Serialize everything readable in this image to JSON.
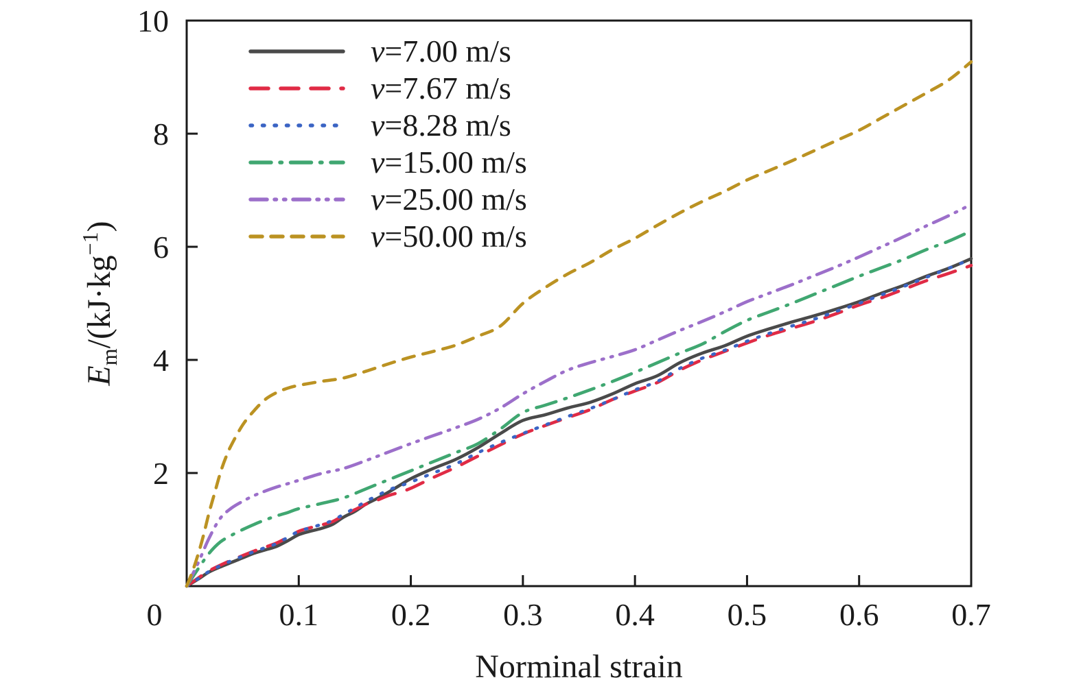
{
  "chart_data": {
    "type": "line",
    "title": "",
    "xlabel": "Norminal strain",
    "ylabel_parts": {
      "var": "E",
      "sub": "m",
      "mid": "/(kJ·kg",
      "sup": "−1",
      "end": ")"
    },
    "xlim": [
      0,
      0.7
    ],
    "ylim": [
      0,
      10
    ],
    "x_ticks": [
      0,
      0.1,
      0.2,
      0.3,
      0.4,
      0.5,
      0.6,
      0.7
    ],
    "x_tick_labels": [
      "0",
      "0.1",
      "0.2",
      "0.3",
      "0.4",
      "0.5",
      "0.6",
      "0.7"
    ],
    "y_ticks": [
      2,
      4,
      6,
      8,
      10
    ],
    "y_tick_labels": [
      "2",
      "4",
      "6",
      "8",
      "10"
    ],
    "grid": false,
    "legend_position": "upper left",
    "frame_color": "#1a1a1a",
    "series": [
      {
        "name": "v=7.00 m/s",
        "label_var": "v",
        "label_rest": "=7.00 m/s",
        "color": "#4a4a4a",
        "style": "solid",
        "points": [
          [
            0,
            0
          ],
          [
            0.01,
            0.12
          ],
          [
            0.02,
            0.25
          ],
          [
            0.03,
            0.34
          ],
          [
            0.04,
            0.42
          ],
          [
            0.05,
            0.5
          ],
          [
            0.06,
            0.58
          ],
          [
            0.07,
            0.64
          ],
          [
            0.08,
            0.7
          ],
          [
            0.09,
            0.8
          ],
          [
            0.1,
            0.91
          ],
          [
            0.11,
            0.97
          ],
          [
            0.12,
            1.02
          ],
          [
            0.13,
            1.09
          ],
          [
            0.14,
            1.22
          ],
          [
            0.15,
            1.32
          ],
          [
            0.16,
            1.45
          ],
          [
            0.17,
            1.55
          ],
          [
            0.18,
            1.66
          ],
          [
            0.19,
            1.78
          ],
          [
            0.2,
            1.9
          ],
          [
            0.22,
            2.08
          ],
          [
            0.24,
            2.24
          ],
          [
            0.26,
            2.45
          ],
          [
            0.28,
            2.7
          ],
          [
            0.3,
            2.93
          ],
          [
            0.32,
            3.03
          ],
          [
            0.34,
            3.15
          ],
          [
            0.36,
            3.25
          ],
          [
            0.38,
            3.4
          ],
          [
            0.4,
            3.58
          ],
          [
            0.42,
            3.72
          ],
          [
            0.44,
            3.95
          ],
          [
            0.46,
            4.12
          ],
          [
            0.48,
            4.25
          ],
          [
            0.5,
            4.42
          ],
          [
            0.52,
            4.55
          ],
          [
            0.54,
            4.67
          ],
          [
            0.56,
            4.78
          ],
          [
            0.58,
            4.9
          ],
          [
            0.6,
            5.03
          ],
          [
            0.62,
            5.18
          ],
          [
            0.64,
            5.32
          ],
          [
            0.66,
            5.48
          ],
          [
            0.68,
            5.62
          ],
          [
            0.7,
            5.79
          ]
        ]
      },
      {
        "name": "v=7.67 m/s",
        "label_var": "v",
        "label_rest": "=7.67 m/s",
        "color": "#e02b45",
        "style": "dashed",
        "points": [
          [
            0,
            0
          ],
          [
            0.01,
            0.14
          ],
          [
            0.02,
            0.27
          ],
          [
            0.03,
            0.37
          ],
          [
            0.04,
            0.46
          ],
          [
            0.05,
            0.54
          ],
          [
            0.06,
            0.62
          ],
          [
            0.07,
            0.69
          ],
          [
            0.08,
            0.76
          ],
          [
            0.09,
            0.86
          ],
          [
            0.1,
            0.97
          ],
          [
            0.11,
            1.03
          ],
          [
            0.12,
            1.08
          ],
          [
            0.13,
            1.14
          ],
          [
            0.14,
            1.25
          ],
          [
            0.15,
            1.35
          ],
          [
            0.16,
            1.45
          ],
          [
            0.17,
            1.52
          ],
          [
            0.18,
            1.6
          ],
          [
            0.19,
            1.66
          ],
          [
            0.2,
            1.73
          ],
          [
            0.22,
            1.92
          ],
          [
            0.24,
            2.1
          ],
          [
            0.26,
            2.3
          ],
          [
            0.28,
            2.5
          ],
          [
            0.3,
            2.69
          ],
          [
            0.32,
            2.84
          ],
          [
            0.34,
            2.98
          ],
          [
            0.36,
            3.12
          ],
          [
            0.38,
            3.3
          ],
          [
            0.4,
            3.45
          ],
          [
            0.42,
            3.6
          ],
          [
            0.44,
            3.82
          ],
          [
            0.46,
            4.0
          ],
          [
            0.48,
            4.15
          ],
          [
            0.5,
            4.3
          ],
          [
            0.52,
            4.44
          ],
          [
            0.54,
            4.56
          ],
          [
            0.56,
            4.68
          ],
          [
            0.58,
            4.82
          ],
          [
            0.6,
            4.97
          ],
          [
            0.62,
            5.1
          ],
          [
            0.64,
            5.25
          ],
          [
            0.66,
            5.4
          ],
          [
            0.68,
            5.53
          ],
          [
            0.7,
            5.67
          ]
        ]
      },
      {
        "name": "v=8.28 m/s",
        "label_var": "v",
        "label_rest": "=8.28 m/s",
        "color": "#3b64c4",
        "style": "dotted",
        "points": [
          [
            0,
            0
          ],
          [
            0.01,
            0.13
          ],
          [
            0.02,
            0.26
          ],
          [
            0.03,
            0.36
          ],
          [
            0.04,
            0.45
          ],
          [
            0.05,
            0.53
          ],
          [
            0.06,
            0.61
          ],
          [
            0.07,
            0.68
          ],
          [
            0.08,
            0.75
          ],
          [
            0.09,
            0.86
          ],
          [
            0.1,
            0.97
          ],
          [
            0.11,
            1.03
          ],
          [
            0.12,
            1.09
          ],
          [
            0.13,
            1.16
          ],
          [
            0.14,
            1.27
          ],
          [
            0.15,
            1.38
          ],
          [
            0.16,
            1.5
          ],
          [
            0.17,
            1.6
          ],
          [
            0.18,
            1.7
          ],
          [
            0.19,
            1.77
          ],
          [
            0.2,
            1.84
          ],
          [
            0.22,
            2.0
          ],
          [
            0.24,
            2.16
          ],
          [
            0.26,
            2.36
          ],
          [
            0.28,
            2.54
          ],
          [
            0.3,
            2.7
          ],
          [
            0.32,
            2.85
          ],
          [
            0.34,
            3.0
          ],
          [
            0.36,
            3.14
          ],
          [
            0.38,
            3.3
          ],
          [
            0.4,
            3.47
          ],
          [
            0.42,
            3.62
          ],
          [
            0.44,
            3.85
          ],
          [
            0.46,
            4.03
          ],
          [
            0.48,
            4.17
          ],
          [
            0.5,
            4.33
          ],
          [
            0.52,
            4.47
          ],
          [
            0.54,
            4.6
          ],
          [
            0.56,
            4.72
          ],
          [
            0.58,
            4.86
          ],
          [
            0.6,
            5.0
          ],
          [
            0.62,
            5.15
          ],
          [
            0.64,
            5.3
          ],
          [
            0.66,
            5.46
          ],
          [
            0.68,
            5.62
          ],
          [
            0.7,
            5.78
          ]
        ]
      },
      {
        "name": "v=15.00 m/s",
        "label_var": "v",
        "label_rest": "=15.00 m/s",
        "color": "#40a771",
        "style": "dashdot",
        "points": [
          [
            0,
            0
          ],
          [
            0.01,
            0.3
          ],
          [
            0.02,
            0.58
          ],
          [
            0.03,
            0.78
          ],
          [
            0.04,
            0.9
          ],
          [
            0.05,
            1.0
          ],
          [
            0.06,
            1.09
          ],
          [
            0.07,
            1.17
          ],
          [
            0.08,
            1.24
          ],
          [
            0.09,
            1.3
          ],
          [
            0.1,
            1.37
          ],
          [
            0.12,
            1.46
          ],
          [
            0.14,
            1.56
          ],
          [
            0.16,
            1.72
          ],
          [
            0.18,
            1.88
          ],
          [
            0.2,
            2.04
          ],
          [
            0.22,
            2.2
          ],
          [
            0.24,
            2.36
          ],
          [
            0.26,
            2.52
          ],
          [
            0.28,
            2.78
          ],
          [
            0.3,
            3.07
          ],
          [
            0.32,
            3.2
          ],
          [
            0.34,
            3.33
          ],
          [
            0.36,
            3.47
          ],
          [
            0.38,
            3.62
          ],
          [
            0.4,
            3.78
          ],
          [
            0.42,
            3.95
          ],
          [
            0.44,
            4.12
          ],
          [
            0.46,
            4.28
          ],
          [
            0.48,
            4.5
          ],
          [
            0.5,
            4.7
          ],
          [
            0.52,
            4.85
          ],
          [
            0.54,
            5.0
          ],
          [
            0.56,
            5.16
          ],
          [
            0.58,
            5.32
          ],
          [
            0.6,
            5.48
          ],
          [
            0.62,
            5.63
          ],
          [
            0.64,
            5.78
          ],
          [
            0.66,
            5.95
          ],
          [
            0.68,
            6.1
          ],
          [
            0.7,
            6.28
          ]
        ]
      },
      {
        "name": "v=25.00 m/s",
        "label_var": "v",
        "label_rest": "=25.00 m/s",
        "color": "#9c6fca",
        "style": "dashdotdot",
        "points": [
          [
            0,
            0
          ],
          [
            0.01,
            0.4
          ],
          [
            0.02,
            0.85
          ],
          [
            0.03,
            1.2
          ],
          [
            0.04,
            1.38
          ],
          [
            0.05,
            1.5
          ],
          [
            0.06,
            1.6
          ],
          [
            0.07,
            1.68
          ],
          [
            0.08,
            1.75
          ],
          [
            0.09,
            1.81
          ],
          [
            0.1,
            1.87
          ],
          [
            0.12,
            1.99
          ],
          [
            0.14,
            2.08
          ],
          [
            0.16,
            2.22
          ],
          [
            0.18,
            2.37
          ],
          [
            0.2,
            2.52
          ],
          [
            0.22,
            2.66
          ],
          [
            0.24,
            2.8
          ],
          [
            0.26,
            2.95
          ],
          [
            0.28,
            3.15
          ],
          [
            0.3,
            3.4
          ],
          [
            0.32,
            3.62
          ],
          [
            0.34,
            3.82
          ],
          [
            0.36,
            3.95
          ],
          [
            0.38,
            4.06
          ],
          [
            0.4,
            4.18
          ],
          [
            0.42,
            4.35
          ],
          [
            0.44,
            4.52
          ],
          [
            0.46,
            4.68
          ],
          [
            0.48,
            4.85
          ],
          [
            0.5,
            5.03
          ],
          [
            0.52,
            5.18
          ],
          [
            0.54,
            5.33
          ],
          [
            0.56,
            5.49
          ],
          [
            0.58,
            5.65
          ],
          [
            0.6,
            5.82
          ],
          [
            0.62,
            6.0
          ],
          [
            0.64,
            6.18
          ],
          [
            0.66,
            6.37
          ],
          [
            0.68,
            6.55
          ],
          [
            0.7,
            6.75
          ]
        ]
      },
      {
        "name": "v=50.00 m/s",
        "label_var": "v",
        "label_rest": "=50.00 m/s",
        "color": "#bb9222",
        "style": "shortdash",
        "points": [
          [
            0,
            0
          ],
          [
            0.005,
            0.25
          ],
          [
            0.01,
            0.55
          ],
          [
            0.015,
            0.9
          ],
          [
            0.02,
            1.3
          ],
          [
            0.025,
            1.65
          ],
          [
            0.03,
            2.0
          ],
          [
            0.035,
            2.28
          ],
          [
            0.04,
            2.5
          ],
          [
            0.05,
            2.85
          ],
          [
            0.06,
            3.1
          ],
          [
            0.07,
            3.3
          ],
          [
            0.08,
            3.42
          ],
          [
            0.09,
            3.5
          ],
          [
            0.1,
            3.55
          ],
          [
            0.12,
            3.62
          ],
          [
            0.14,
            3.68
          ],
          [
            0.16,
            3.8
          ],
          [
            0.18,
            3.93
          ],
          [
            0.2,
            4.05
          ],
          [
            0.22,
            4.15
          ],
          [
            0.24,
            4.26
          ],
          [
            0.26,
            4.42
          ],
          [
            0.28,
            4.6
          ],
          [
            0.3,
            5.0
          ],
          [
            0.32,
            5.28
          ],
          [
            0.34,
            5.52
          ],
          [
            0.36,
            5.72
          ],
          [
            0.38,
            5.95
          ],
          [
            0.4,
            6.15
          ],
          [
            0.42,
            6.38
          ],
          [
            0.44,
            6.6
          ],
          [
            0.46,
            6.8
          ],
          [
            0.48,
            6.98
          ],
          [
            0.5,
            7.18
          ],
          [
            0.52,
            7.35
          ],
          [
            0.54,
            7.52
          ],
          [
            0.56,
            7.7
          ],
          [
            0.58,
            7.88
          ],
          [
            0.6,
            8.06
          ],
          [
            0.62,
            8.28
          ],
          [
            0.64,
            8.5
          ],
          [
            0.66,
            8.72
          ],
          [
            0.68,
            8.95
          ],
          [
            0.7,
            9.27
          ]
        ]
      }
    ]
  },
  "layout_text": {
    "xlabel": "Norminal strain"
  }
}
